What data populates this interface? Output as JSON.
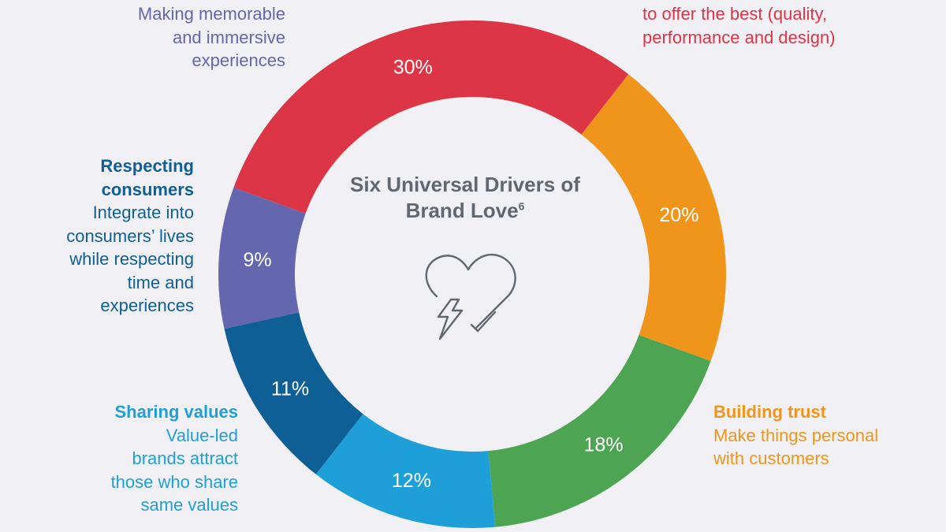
{
  "chart_data": {
    "type": "pie",
    "variant": "donut",
    "title": "Six Universal Drivers of Brand Love",
    "title_footnote": "6",
    "slices": [
      {
        "label": "30%",
        "value": 30,
        "color": "#dc3545"
      },
      {
        "label": "20%",
        "value": 20,
        "color": "#f0951b"
      },
      {
        "label": "18%",
        "value": 18,
        "color": "#4da453"
      },
      {
        "label": "12%",
        "value": 12,
        "color": "#1e9fd8"
      },
      {
        "label": "11%",
        "value": 11,
        "color": "#0d5f96"
      },
      {
        "label": "9%",
        "value": 9,
        "color": "#6466ae"
      }
    ]
  },
  "callouts": {
    "red": {
      "head": "",
      "desc_line1": "to offer the best (quality,",
      "desc_line2": "performance and design)"
    },
    "orange": {
      "head": "Building trust",
      "desc_line1": "Make things personal",
      "desc_line2": "with customers"
    },
    "sky": {
      "head": "Sharing values",
      "desc_line1": "Value-led",
      "desc_line2": "brands attract",
      "desc_line3": "those who share",
      "desc_line4": "same values"
    },
    "navy": {
      "head_line1": "Respecting",
      "head_line2": "consumers",
      "desc_line1": "Integrate into",
      "desc_line2": "consumers’ lives",
      "desc_line3": "while respecting",
      "desc_line4": "time and",
      "desc_line5": "experiences"
    },
    "purple": {
      "desc_line1": "Making memorable",
      "desc_line2": "and immersive",
      "desc_line3": "experiences"
    }
  },
  "icons": {
    "center": "heart-lightning-check-icon"
  },
  "colors": {
    "background": "#f1f1f5",
    "title": "#5f6770",
    "red": "#dc3545",
    "orange": "#f0951b",
    "green": "#4da453",
    "sky": "#1e9fd8",
    "navy": "#0d5f96",
    "purple": "#6466ae"
  }
}
